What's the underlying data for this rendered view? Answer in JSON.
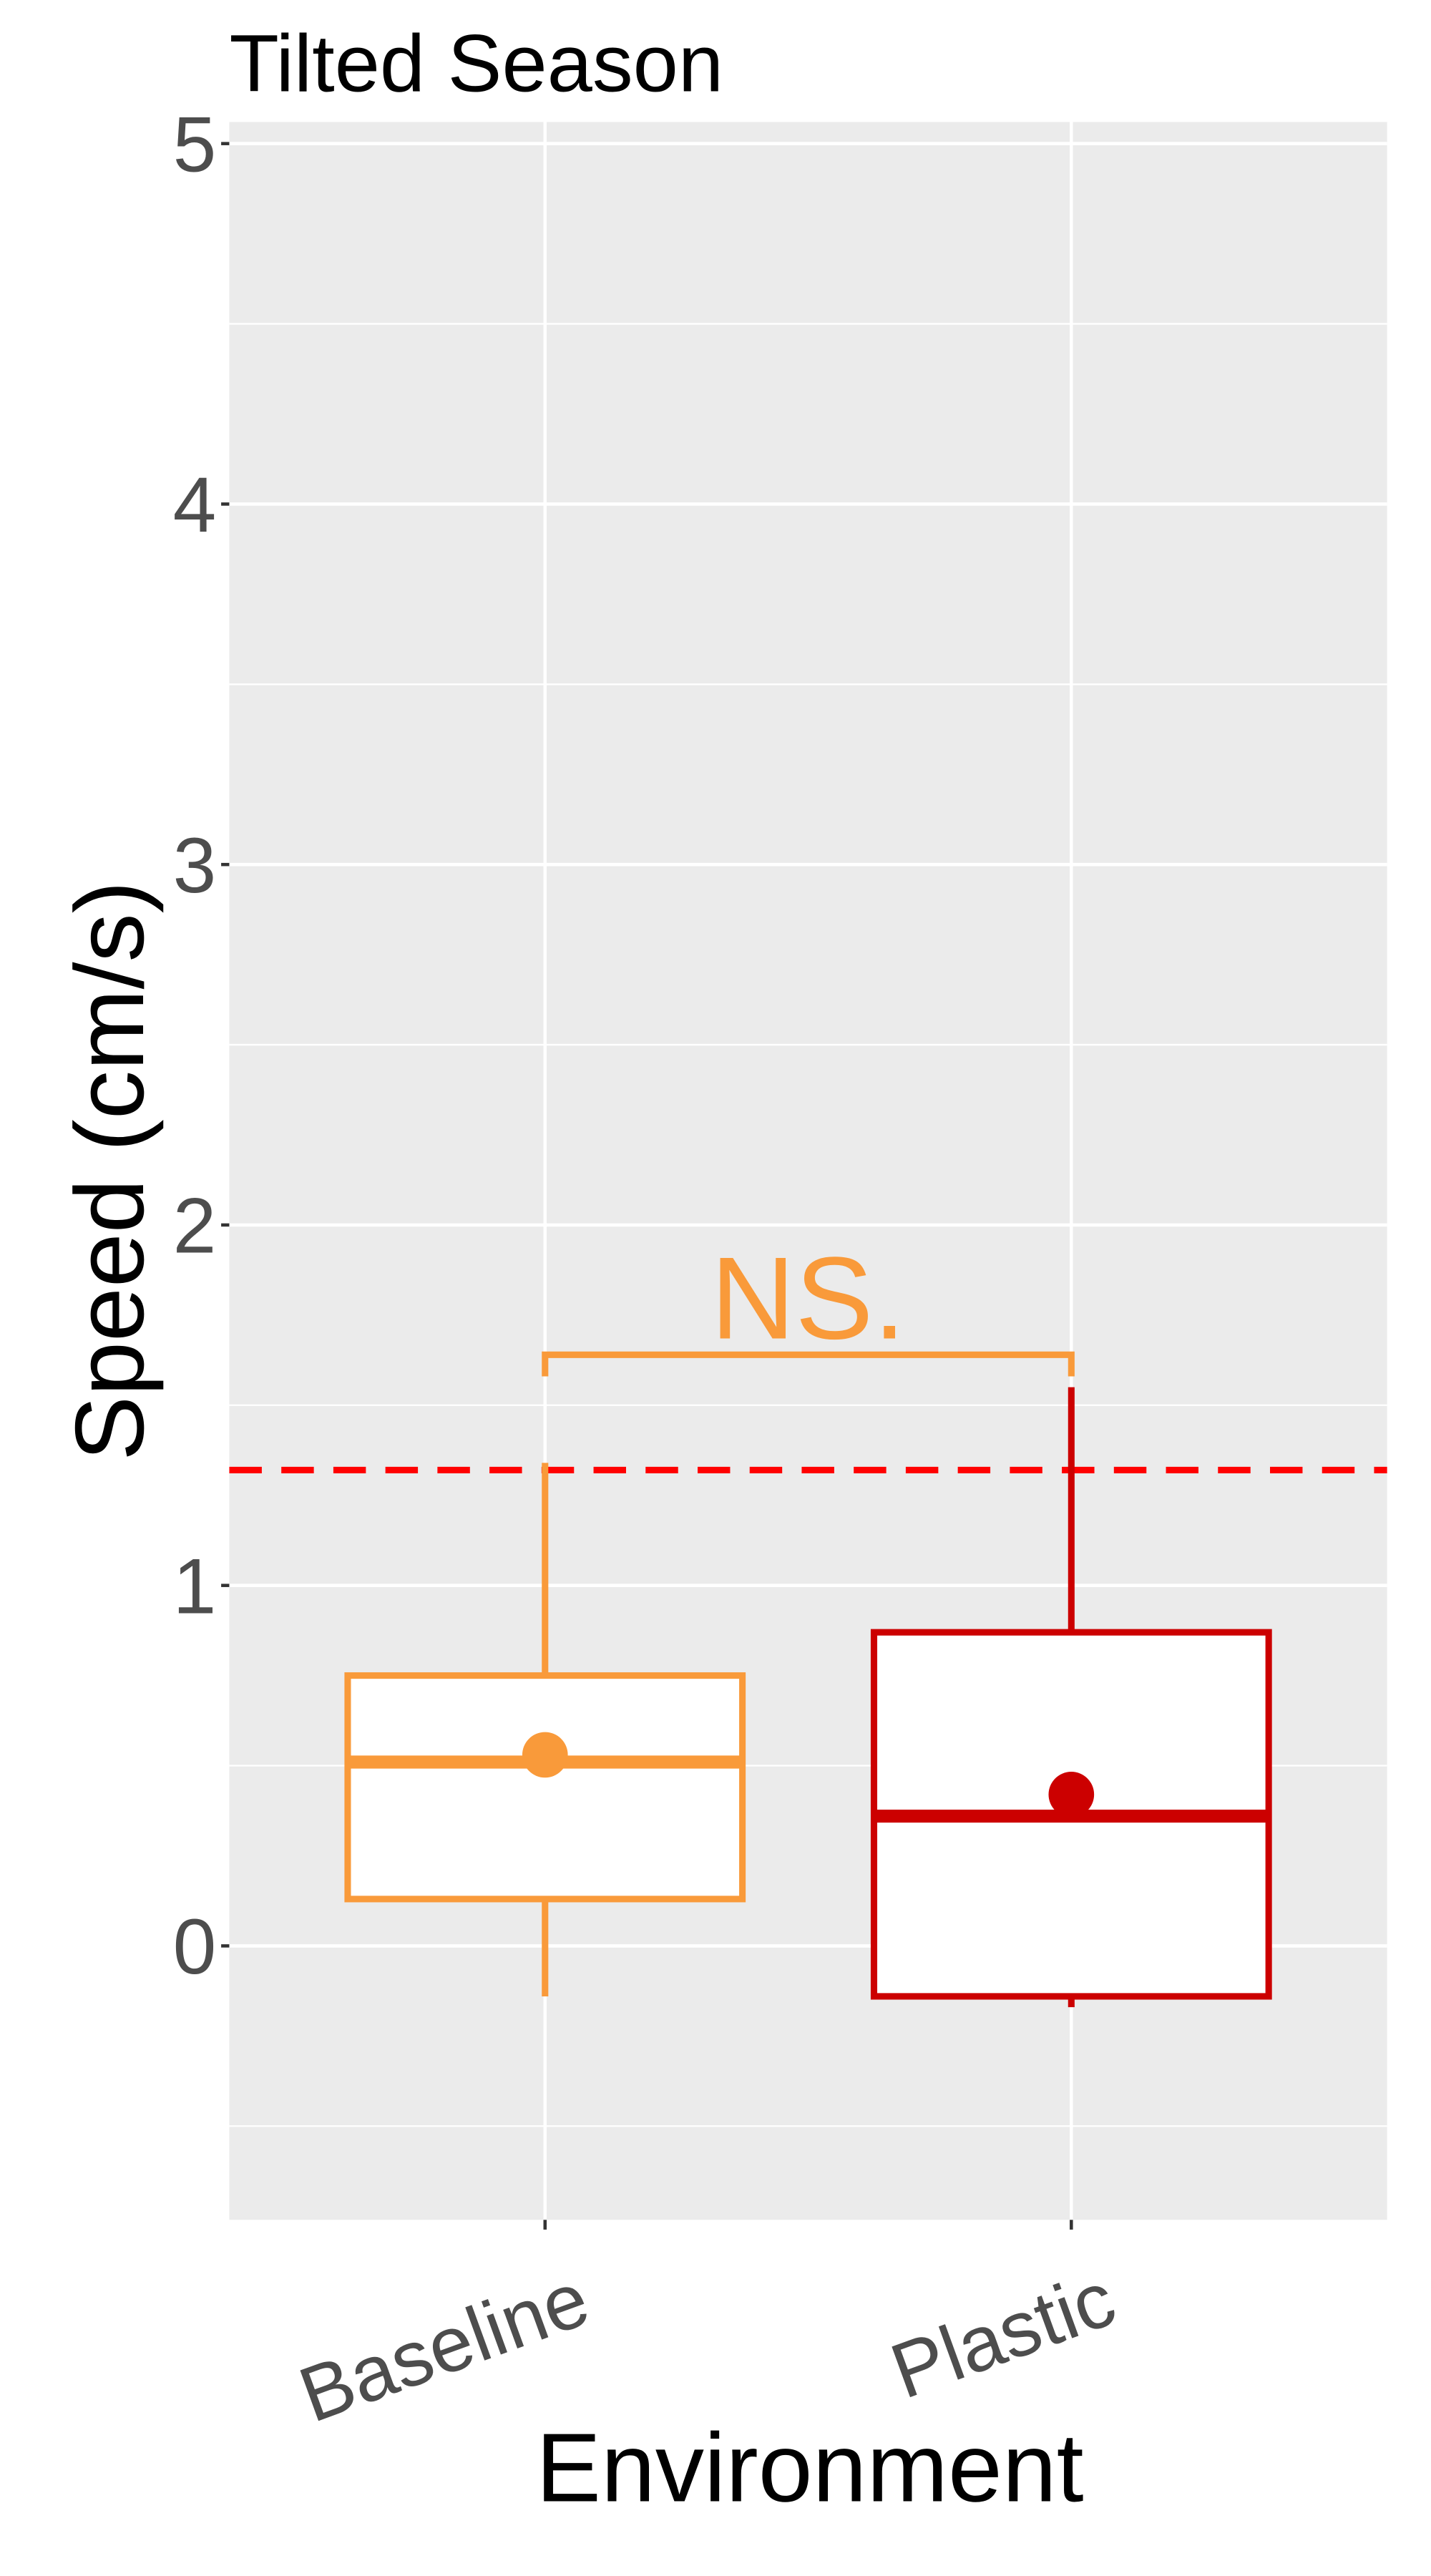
{
  "chart_data": {
    "type": "box",
    "title": "Tilted Season",
    "x_label": "Environment",
    "y_label": "Speed (cm/s)",
    "boxes": [
      {
        "category": "Baseline",
        "color": "#f99a3a",
        "whisker_low": -0.14,
        "q1": 0.13,
        "median": 0.51,
        "q3": 0.75,
        "whisker_high": 1.34,
        "mean": 0.53
      },
      {
        "category": "Plastic",
        "color": "#cc0000",
        "whisker_low": -0.17,
        "q1": -0.14,
        "median": 0.36,
        "q3": 0.87,
        "whisker_high": 1.55,
        "mean": 0.42
      }
    ],
    "ylim": [
      -0.76,
      5.06
    ],
    "yticks": [
      0,
      1,
      2,
      3,
      4,
      5
    ],
    "yminor": [
      -0.5,
      0.5,
      1.5,
      2.5,
      3.5,
      4.5
    ],
    "grid": true,
    "reference_line": {
      "value": 1.32,
      "color": "#ff0000",
      "dashed": true
    },
    "annotation": {
      "text": "NS.",
      "y": 1.64,
      "tick_end": 1.58,
      "from": 0,
      "to": 1,
      "color": "#f99a3a"
    }
  }
}
